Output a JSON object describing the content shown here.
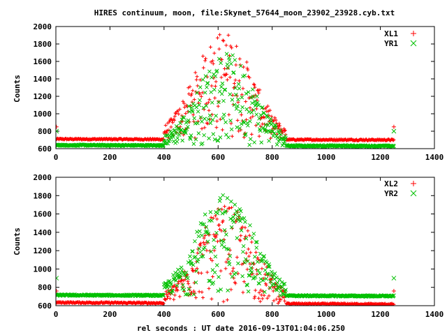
{
  "title": "HIRES continuum, moon, file:Skynet_57644_moon_23902_23928.cyb.txt",
  "xlabel": "rel seconds : UT date 2016-09-13T01:04:06.250",
  "chart_data": [
    {
      "type": "scatter",
      "ylabel": "Counts",
      "xlim": [
        0,
        1400
      ],
      "ylim": [
        600,
        2000
      ],
      "xticks": [
        "0",
        "200",
        "400",
        "600",
        "800",
        "1000",
        "1200",
        "1400"
      ],
      "yticks": [
        "600",
        "800",
        "1000",
        "1200",
        "1400",
        "1600",
        "1800",
        "2000"
      ],
      "legend_position": "top-right",
      "series": [
        {
          "name": "XL1",
          "marker": "plus",
          "color": "#ff0000",
          "baseline": 710,
          "baseline_end": 700,
          "peak": 1950,
          "peak_x": 620,
          "rise_start": 400,
          "rise_end": 850,
          "x_end": 1250,
          "end_spike": 850
        },
        {
          "name": "YR1",
          "marker": "cross",
          "color": "#00c000",
          "baseline": 640,
          "baseline_end": 630,
          "peak": 1700,
          "peak_x": 630,
          "rise_start": 400,
          "rise_end": 850,
          "x_end": 1250,
          "end_spike": 800
        }
      ]
    },
    {
      "type": "scatter",
      "ylabel": "Counts",
      "xlim": [
        0,
        1400
      ],
      "ylim": [
        600,
        2000
      ],
      "xticks": [
        "0",
        "200",
        "400",
        "600",
        "800",
        "1000",
        "1200",
        "1400"
      ],
      "yticks": [
        "600",
        "800",
        "1000",
        "1200",
        "1400",
        "1600",
        "1800",
        "2000"
      ],
      "legend_position": "top-right",
      "series": [
        {
          "name": "XL2",
          "marker": "plus",
          "color": "#ff0000",
          "baseline": 635,
          "baseline_end": 615,
          "peak": 1700,
          "peak_x": 630,
          "rise_start": 400,
          "rise_end": 850,
          "x_end": 1250,
          "end_spike": 760
        },
        {
          "name": "YR2",
          "marker": "cross",
          "color": "#00c000",
          "baseline": 715,
          "baseline_end": 705,
          "peak": 1830,
          "peak_x": 625,
          "rise_start": 400,
          "rise_end": 850,
          "x_end": 1250,
          "end_spike": 900
        }
      ]
    }
  ]
}
